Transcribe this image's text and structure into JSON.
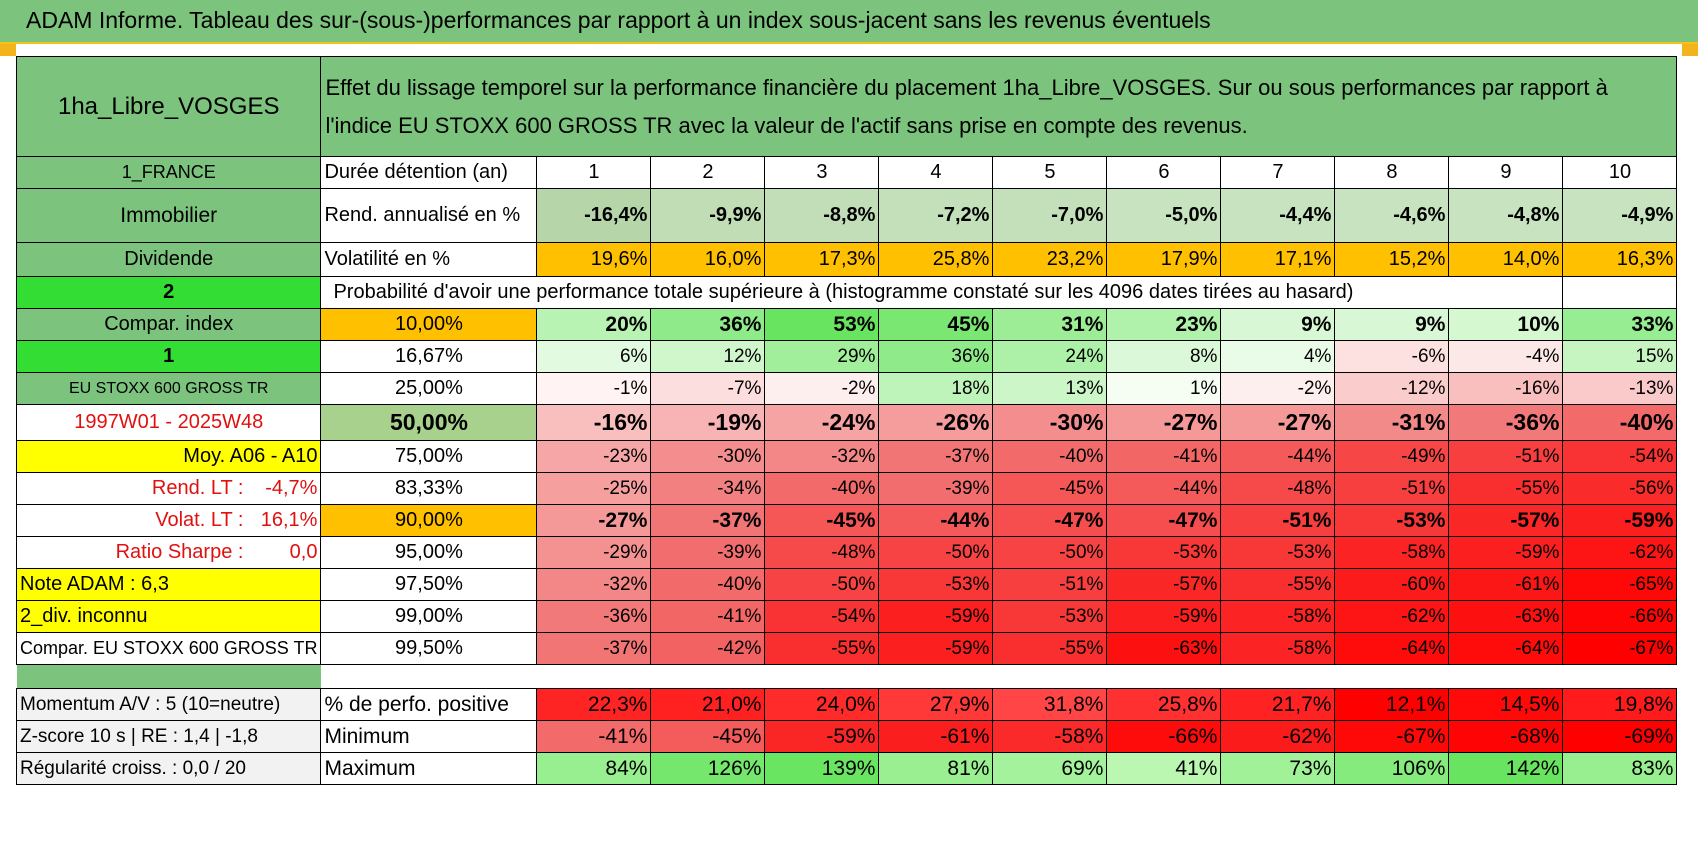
{
  "title": "ADAM Informe. Tableau des sur-(sous-)performances par rapport à un index sous-jacent sans les revenus éventuels",
  "header": {
    "asset_name": "1ha_Libre_VOSGES",
    "description": "Effet du lissage temporel sur la performance financière du placement 1ha_Libre_VOSGES. Sur ou sous performances par rapport à l'indice EU STOXX 600 GROSS TR avec la valeur de l'actif sans prise en compte des revenus."
  },
  "left_labels": {
    "country": "1_FRANCE",
    "category": "Immobilier",
    "type": "Dividende",
    "sel_2": "2",
    "compar_index": "Compar. index",
    "sel_1": "1",
    "index_name": "EU STOXX 600 GROSS TR",
    "period": "1997W01 - 2025W48",
    "moy": "Moy. A06 - A10",
    "rend_lt_label": "Rend. LT :",
    "rend_lt_value": "-4,7%",
    "volat_lt_label": "Volat. LT :",
    "volat_lt_value": "16,1%",
    "sharpe_label": "Ratio Sharpe :",
    "sharpe_value": "0,0",
    "note_adam": "Note ADAM : 6,3",
    "div": "2_div. inconnu",
    "compar_full": "Compar. EU STOXX 600 GROSS TR"
  },
  "row_labels": {
    "duration": "Durée détention (an)",
    "rend": "Rend. annualisé en %",
    "volat": "Volatilité en %",
    "proba": "Probabilité d'avoir une performance totale supérieure à (histogramme constaté sur les 4096 dates tirées au hasard)"
  },
  "years": [
    "1",
    "2",
    "3",
    "4",
    "5",
    "6",
    "7",
    "8",
    "9",
    "10"
  ],
  "rend": [
    "-16,4%",
    "-9,9%",
    "-8,8%",
    "-7,2%",
    "-7,0%",
    "-5,0%",
    "-4,4%",
    "-4,6%",
    "-4,8%",
    "-4,9%"
  ],
  "volat": [
    "19,6%",
    "16,0%",
    "17,3%",
    "25,8%",
    "23,2%",
    "17,9%",
    "17,1%",
    "15,2%",
    "14,0%",
    "16,3%"
  ],
  "percentiles": [
    {
      "label": "10,00%",
      "values": [
        "20%",
        "36%",
        "53%",
        "45%",
        "31%",
        "23%",
        "9%",
        "9%",
        "10%",
        "33%"
      ]
    },
    {
      "label": "16,67%",
      "values": [
        "6%",
        "12%",
        "29%",
        "36%",
        "24%",
        "8%",
        "4%",
        "-6%",
        "-4%",
        "15%"
      ]
    },
    {
      "label": "25,00%",
      "values": [
        "-1%",
        "-7%",
        "-2%",
        "18%",
        "13%",
        "1%",
        "-2%",
        "-12%",
        "-16%",
        "-13%"
      ]
    },
    {
      "label": "50,00%",
      "values": [
        "-16%",
        "-19%",
        "-24%",
        "-26%",
        "-30%",
        "-27%",
        "-27%",
        "-31%",
        "-36%",
        "-40%"
      ]
    },
    {
      "label": "75,00%",
      "values": [
        "-23%",
        "-30%",
        "-32%",
        "-37%",
        "-40%",
        "-41%",
        "-44%",
        "-49%",
        "-51%",
        "-54%"
      ]
    },
    {
      "label": "83,33%",
      "values": [
        "-25%",
        "-34%",
        "-40%",
        "-39%",
        "-45%",
        "-44%",
        "-48%",
        "-51%",
        "-55%",
        "-56%"
      ]
    },
    {
      "label": "90,00%",
      "values": [
        "-27%",
        "-37%",
        "-45%",
        "-44%",
        "-47%",
        "-47%",
        "-51%",
        "-53%",
        "-57%",
        "-59%"
      ]
    },
    {
      "label": "95,00%",
      "values": [
        "-29%",
        "-39%",
        "-48%",
        "-50%",
        "-50%",
        "-53%",
        "-53%",
        "-58%",
        "-59%",
        "-62%"
      ]
    },
    {
      "label": "97,50%",
      "values": [
        "-32%",
        "-40%",
        "-50%",
        "-53%",
        "-51%",
        "-57%",
        "-55%",
        "-60%",
        "-61%",
        "-65%"
      ]
    },
    {
      "label": "99,00%",
      "values": [
        "-36%",
        "-41%",
        "-54%",
        "-59%",
        "-53%",
        "-59%",
        "-58%",
        "-62%",
        "-63%",
        "-66%"
      ]
    },
    {
      "label": "99,50%",
      "values": [
        "-37%",
        "-42%",
        "-55%",
        "-59%",
        "-55%",
        "-63%",
        "-58%",
        "-64%",
        "-64%",
        "-67%"
      ]
    }
  ],
  "bottom": [
    {
      "left": "Momentum A/V : 5 (10=neutre)",
      "label": "% de perfo. positive",
      "values": [
        "22,3%",
        "21,0%",
        "24,0%",
        "27,9%",
        "31,8%",
        "25,8%",
        "21,7%",
        "12,1%",
        "14,5%",
        "19,8%"
      ]
    },
    {
      "left": "Z-score 10 s | RE : 1,4 | -1,8",
      "label": "Minimum",
      "values": [
        "-41%",
        "-45%",
        "-59%",
        "-61%",
        "-58%",
        "-66%",
        "-62%",
        "-67%",
        "-68%",
        "-69%"
      ]
    },
    {
      "left": "Régularité croiss. : 0,0 / 20",
      "label": "Maximum",
      "values": [
        "84%",
        "126%",
        "139%",
        "81%",
        "69%",
        "41%",
        "73%",
        "106%",
        "142%",
        "83%"
      ]
    }
  ],
  "colors": {
    "header_green": "#7cc47d",
    "bright_green": "#33dd33",
    "yellow": "#ffff00",
    "orange": "#ffc000",
    "accent_border": "#f5c218",
    "red_text": "#e01010"
  }
}
